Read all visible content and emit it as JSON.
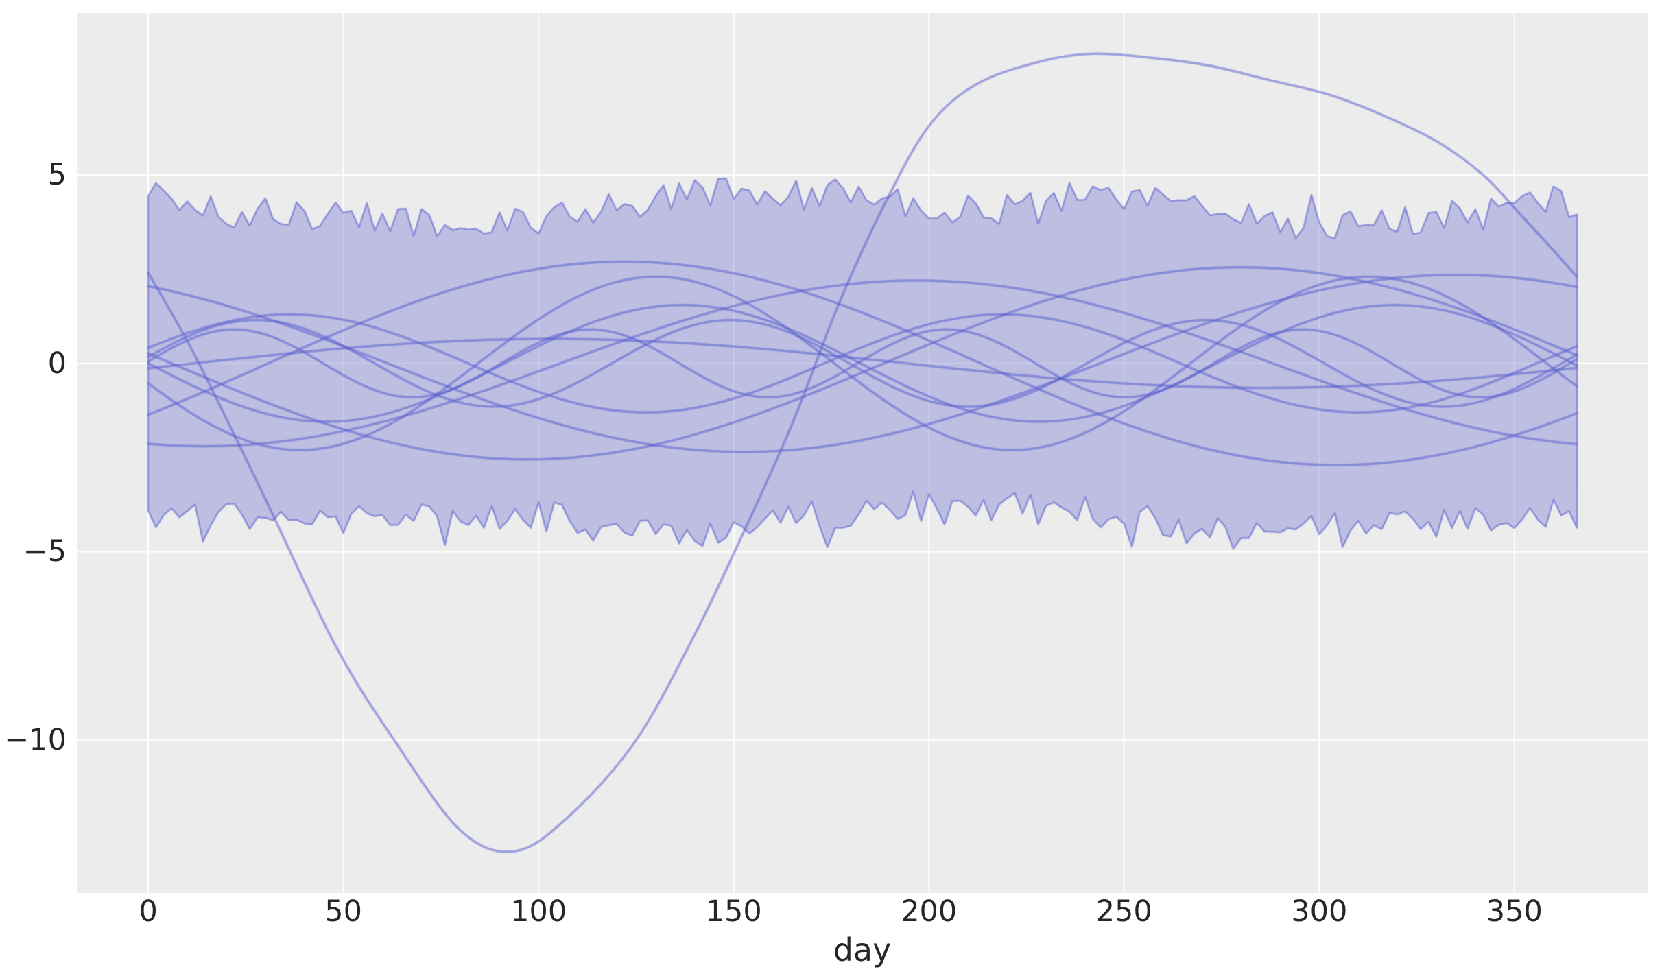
{
  "chart_data": {
    "type": "line",
    "title": "",
    "xlabel": "day",
    "ylabel": "",
    "x_ticks": [
      0,
      50,
      100,
      150,
      200,
      250,
      300,
      350
    ],
    "x_tick_labels": [
      "0",
      "50",
      "100",
      "150",
      "200",
      "250",
      "300",
      "350"
    ],
    "y_ticks": [
      5,
      0,
      -5,
      -10
    ],
    "y_tick_labels": [
      "5",
      "0",
      "−5",
      "−10"
    ],
    "xlim": [
      -18.3,
      384.3
    ],
    "ylim": [
      -14.06,
      9.3
    ],
    "x_domain_days": [
      0,
      366
    ],
    "period_days": 365,
    "grid": {
      "color": "#ffffff",
      "width": 2.2,
      "on": true
    },
    "panel_color": "#ececec",
    "line_style": {
      "color": "rgba(88,94,208,0.52)",
      "width": 3.6
    },
    "band": {
      "upper_mean": 4.0,
      "lower_mean": -4.0,
      "x_start": 0,
      "x_end": 366,
      "step_days": 2,
      "jitter": 0.42,
      "spike_prob": 0.07,
      "spike_max": 0.7,
      "seed": 11,
      "fill_color": "rgba(108,110,205,0.37)",
      "edge_color": "rgba(104,108,210,0.65)",
      "edge_width": 2.5,
      "upper_bumps": [
        {
          "c": 3,
          "w": 8,
          "a": 0.5
        },
        {
          "c": 155,
          "w": 40,
          "a": 0.55
        },
        {
          "c": 255,
          "w": 22,
          "a": 0.45
        },
        {
          "c": 85,
          "w": 28,
          "a": -0.3
        },
        {
          "c": 305,
          "w": 26,
          "a": -0.35
        },
        {
          "c": 357,
          "w": 8,
          "a": 0.45
        }
      ],
      "lower_bumps": [
        {
          "c": 60,
          "w": 22,
          "a": -0.2
        },
        {
          "c": 140,
          "w": 28,
          "a": -0.5
        },
        {
          "c": 278,
          "w": 24,
          "a": -0.55
        },
        {
          "c": 210,
          "w": 45,
          "a": 0.25
        },
        {
          "c": 330,
          "w": 18,
          "a": -0.25
        }
      ]
    },
    "sine_series": [
      {
        "amplitude": 2.35,
        "cycles_per_year": 1,
        "phase_rad": 2.086,
        "value_day0": 2.04
      },
      {
        "amplitude": 2.55,
        "cycles_per_year": 1,
        "phase_rad": 3.039,
        "value_day0": 0.26
      },
      {
        "amplitude": 2.7,
        "cycles_per_year": 1,
        "phase_rad": -0.529,
        "value_day0": -1.36
      },
      {
        "amplitude": 2.2,
        "cycles_per_year": 1,
        "phase_rad": 4.466,
        "value_day0": -2.13
      },
      {
        "amplitude": 0.65,
        "cycles_per_year": 1,
        "phase_rad": -0.201,
        "value_day0": -0.13
      },
      {
        "amplitude": 1.3,
        "cycles_per_year": 2,
        "phase_rad": 0.321,
        "value_day0": 0.41
      },
      {
        "amplitude": 2.3,
        "cycles_per_year": 2,
        "phase_rad": 3.374,
        "value_day0": -0.53
      },
      {
        "amplitude": 1.55,
        "cycles_per_year": 2,
        "phase_rad": 3.142,
        "value_day0": 0.0
      },
      {
        "amplitude": 1.15,
        "cycles_per_year": 3,
        "phase_rad": 0.148,
        "value_day0": 0.17
      },
      {
        "amplitude": 0.9,
        "cycles_per_year": 4,
        "phase_rad": 0.056,
        "value_day0": 0.05
      }
    ],
    "gp_sample_points": [
      [
        0,
        2.4
      ],
      [
        12,
        0.2
      ],
      [
        30,
        -3.6
      ],
      [
        48,
        -7.5
      ],
      [
        63,
        -10.0
      ],
      [
        80,
        -12.4
      ],
      [
        94,
        -12.95
      ],
      [
        108,
        -12.0
      ],
      [
        125,
        -10.0
      ],
      [
        140,
        -7.2
      ],
      [
        152,
        -4.6
      ],
      [
        165,
        -1.6
      ],
      [
        177,
        1.6
      ],
      [
        189,
        4.3
      ],
      [
        200,
        6.3
      ],
      [
        212,
        7.4
      ],
      [
        228,
        8.0
      ],
      [
        242,
        8.22
      ],
      [
        258,
        8.1
      ],
      [
        272,
        7.9
      ],
      [
        288,
        7.5
      ],
      [
        302,
        7.15
      ],
      [
        316,
        6.6
      ],
      [
        330,
        5.9
      ],
      [
        342,
        5.0
      ],
      [
        352,
        3.9
      ],
      [
        360,
        3.0
      ],
      [
        366,
        2.3
      ]
    ]
  }
}
